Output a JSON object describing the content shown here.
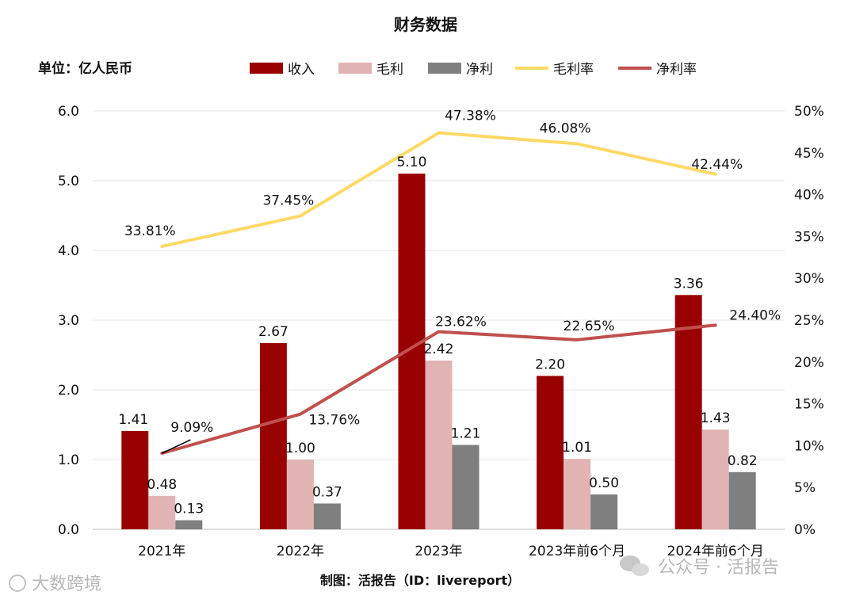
{
  "chart_data": {
    "type": "bar",
    "title": "财务数据",
    "unit_label": "单位：亿人民币",
    "categories": [
      "2021年",
      "2022年",
      "2023年",
      "2023年前6个月",
      "2024年前6个月"
    ],
    "series": [
      {
        "name": "收入",
        "kind": "bar",
        "color": "#990000",
        "values": [
          1.41,
          2.67,
          5.1,
          2.2,
          3.36
        ],
        "labels": [
          "1.41",
          "2.67",
          "5.10",
          "2.20",
          "3.36"
        ]
      },
      {
        "name": "毛利",
        "kind": "bar",
        "color": "#e2b3b3",
        "values": [
          0.48,
          1.0,
          2.42,
          1.01,
          1.43
        ],
        "labels": [
          "0.48",
          "1.00",
          "2.42",
          "1.01",
          "1.43"
        ]
      },
      {
        "name": "净利",
        "kind": "bar",
        "color": "#7f7f7f",
        "values": [
          0.13,
          0.37,
          1.21,
          0.5,
          0.82
        ],
        "labels": [
          "0.13",
          "0.37",
          "1.21",
          "0.50",
          "0.82"
        ]
      },
      {
        "name": "毛利率",
        "kind": "line",
        "axis": "right",
        "color": "#ffd966",
        "label_color": "#f0b400",
        "values": [
          33.81,
          37.45,
          47.38,
          46.08,
          42.44
        ],
        "labels": [
          "33.81%",
          "37.45%",
          "47.38%",
          "46.08%",
          "42.44%"
        ]
      },
      {
        "name": "净利率",
        "kind": "line",
        "axis": "right",
        "color": "#c0504d",
        "label_color": "#c00000",
        "values": [
          9.09,
          13.76,
          23.62,
          22.65,
          24.4
        ],
        "labels": [
          "9.09%",
          "13.76%",
          "23.62%",
          "22.65%",
          "24.40%"
        ]
      }
    ],
    "y_left": {
      "range": [
        0,
        6
      ],
      "ticks": [
        "0.0",
        "1.0",
        "2.0",
        "3.0",
        "4.0",
        "5.0",
        "6.0"
      ]
    },
    "y_right": {
      "range": [
        0,
        50
      ],
      "ticks": [
        "0%",
        "5%",
        "10%",
        "15%",
        "20%",
        "25%",
        "30%",
        "35%",
        "40%",
        "45%",
        "50%"
      ]
    },
    "legend_position": "top",
    "grid": true
  },
  "footer": {
    "source": "制图：活报告（ID：livereport）"
  },
  "watermarks": {
    "left": "大数跨境",
    "right": "公众号 · 活报告"
  }
}
